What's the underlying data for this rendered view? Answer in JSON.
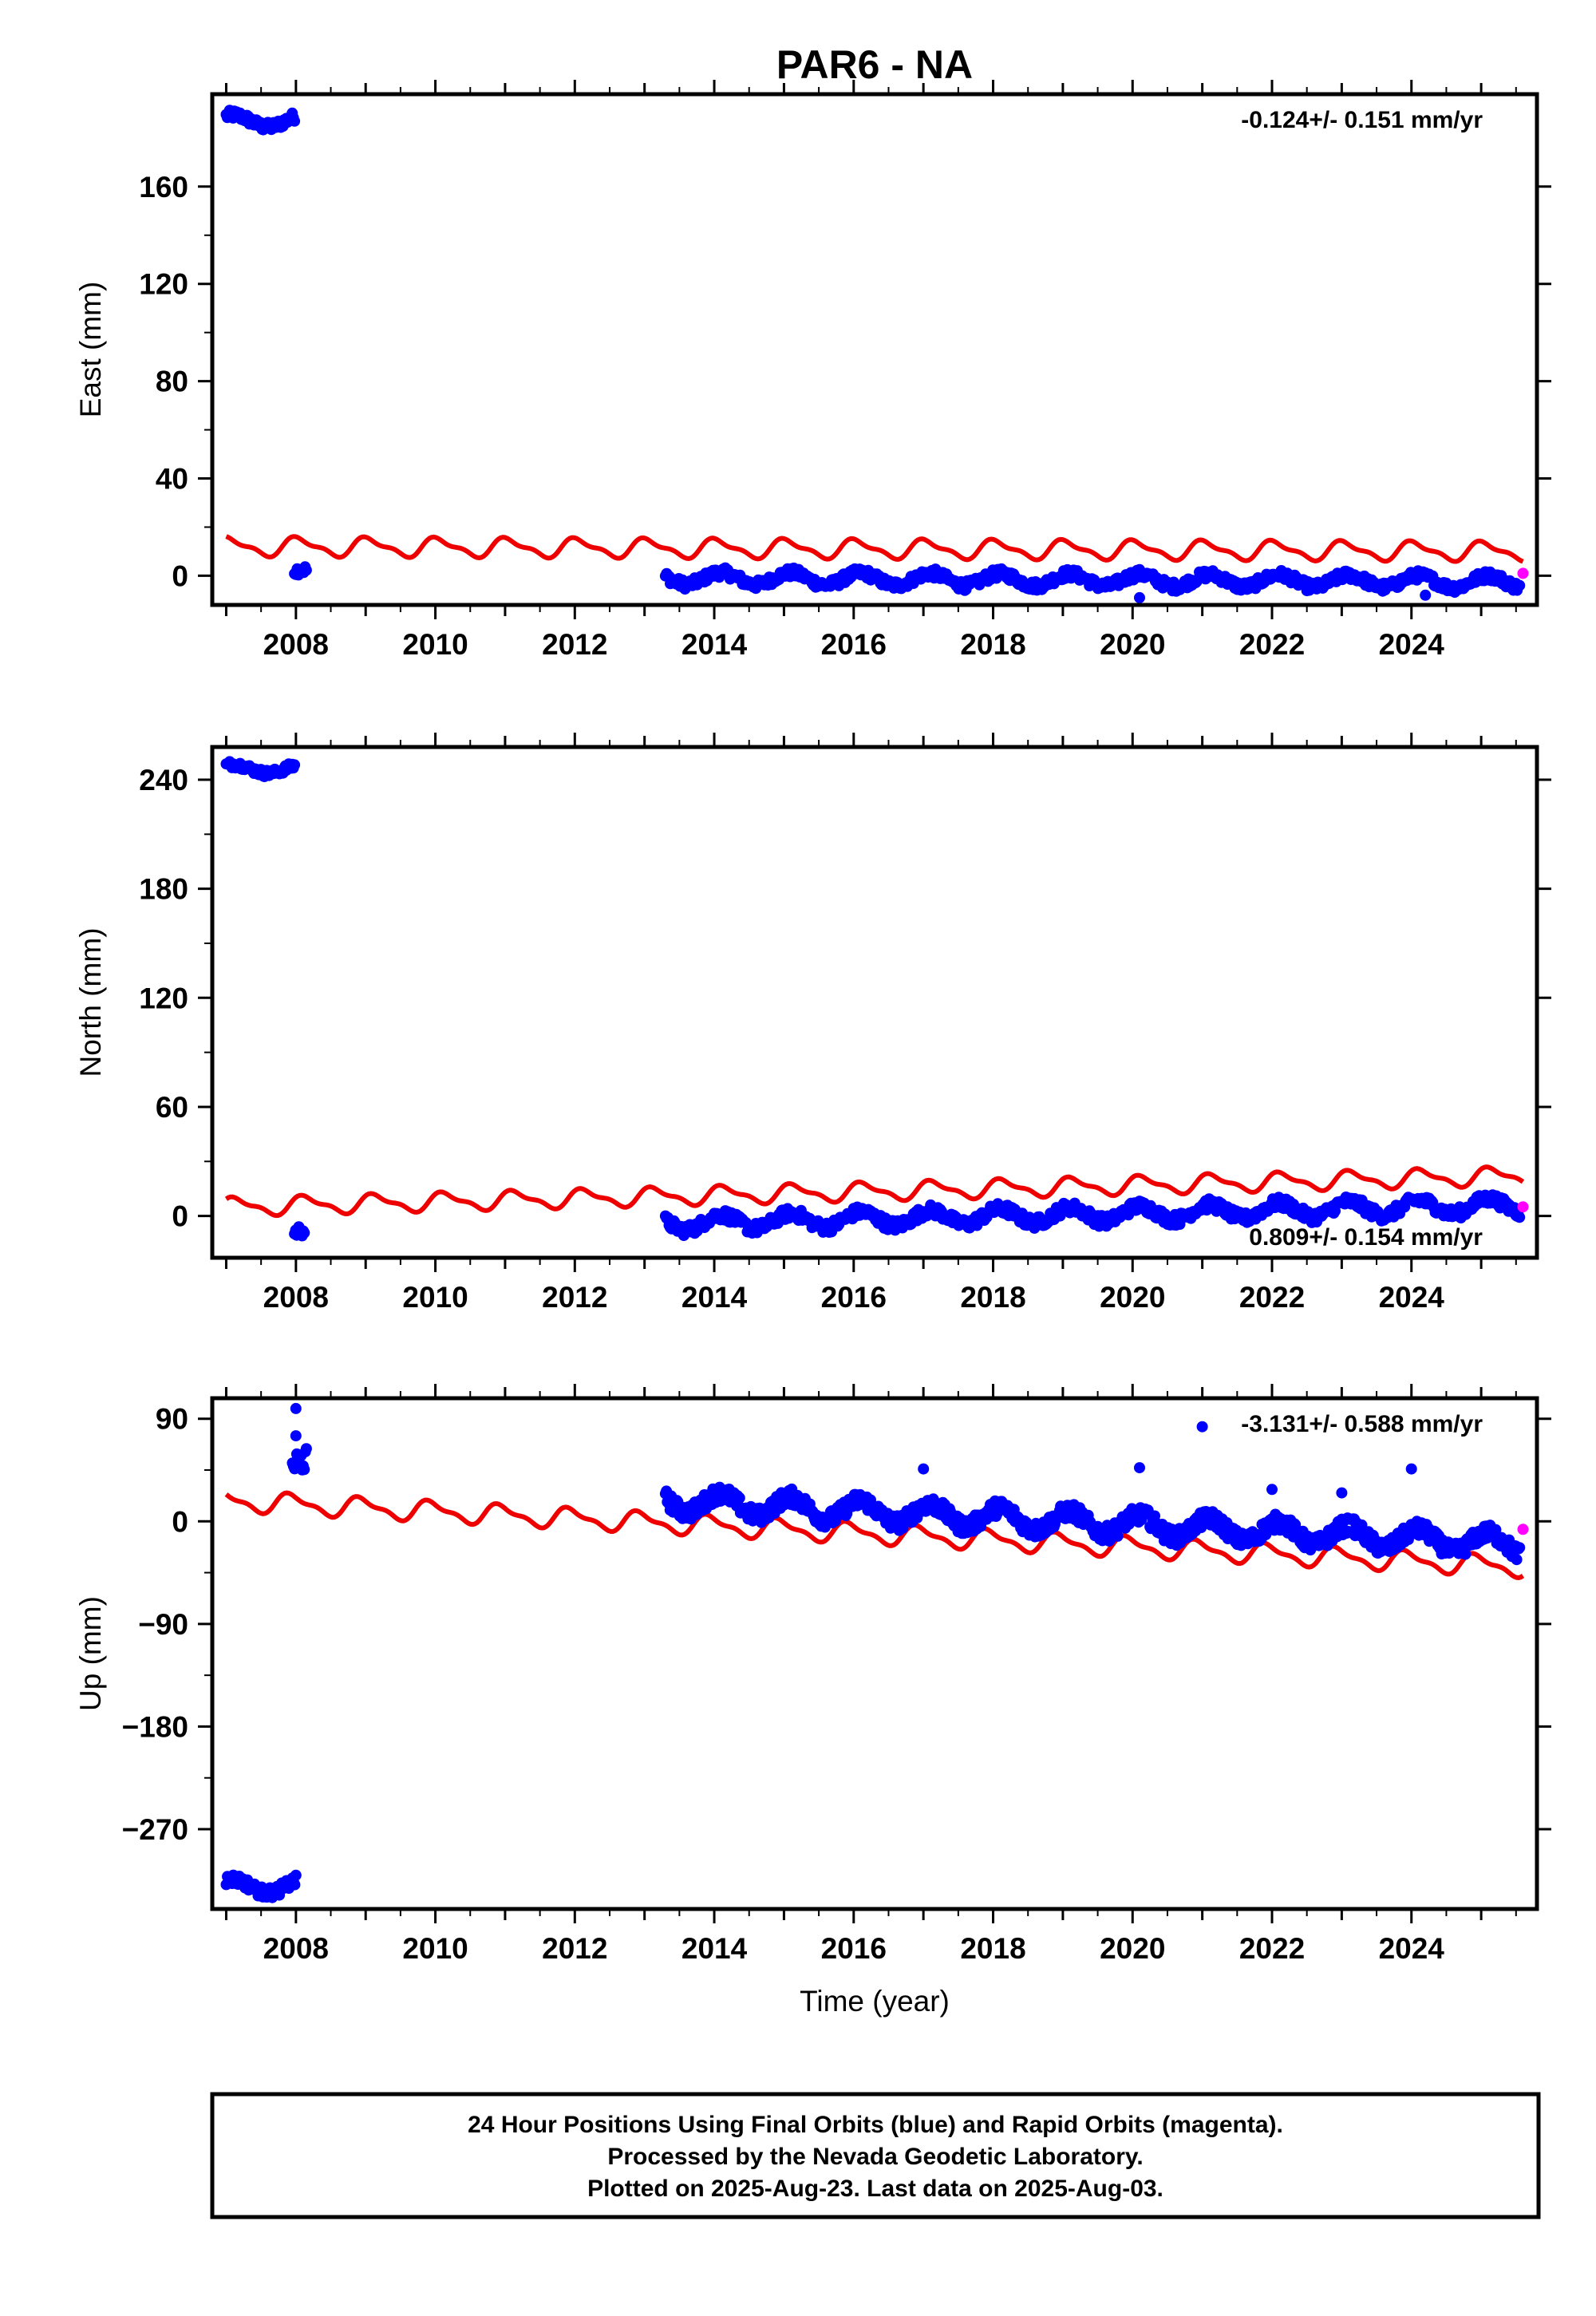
{
  "title": "PAR6 - NA",
  "colors": {
    "final": "#0000ff",
    "rapid": "#ff00ff",
    "model": "#ee0000",
    "frame": "#000000"
  },
  "chart_data": [
    {
      "type": "scatter",
      "component": "East",
      "ylabel": "East (mm)",
      "xlabel": "",
      "xlim": [
        2006.8,
        2025.8
      ],
      "ylim": [
        -12,
        198
      ],
      "yticks": [
        0,
        40,
        80,
        120,
        160
      ],
      "ytick_labels": [
        "0",
        "40",
        "80",
        "120",
        "160"
      ],
      "xticks": [
        2008,
        2010,
        2012,
        2014,
        2016,
        2018,
        2020,
        2022,
        2024
      ],
      "xtick_labels": [
        "2008",
        "2010",
        "2012",
        "2014",
        "2016",
        "2018",
        "2020",
        "2022",
        "2024"
      ],
      "rate": "-0.124+/- 0.151 mm/yr",
      "rate_position": "top-right",
      "model": {
        "t0": 2007.0,
        "t1": 2025.6,
        "start": 12,
        "end": 10,
        "amp": 3.5,
        "phase": 0.2
      },
      "segments": [
        {
          "t0": 2007.0,
          "t1": 2007.98,
          "base": 187,
          "wiggle": 2.5,
          "n": 60
        },
        {
          "t0": 2007.98,
          "t1": 2008.15,
          "base": 0,
          "wiggle": 2.5,
          "n": 10
        },
        {
          "t0": 2013.3,
          "t1": 2025.55,
          "base": -1,
          "trend": -0.124,
          "wiggle": 2.5,
          "n": 700
        }
      ],
      "outliers": [
        {
          "x": 2020.1,
          "y": -9
        },
        {
          "x": 2024.2,
          "y": -8
        }
      ],
      "rapid": {
        "x": 2025.6,
        "y": 1
      }
    },
    {
      "type": "scatter",
      "component": "North",
      "ylabel": "North (mm)",
      "xlabel": "",
      "xlim": [
        2006.8,
        2025.8
      ],
      "ylim": [
        -23,
        258
      ],
      "yticks": [
        0,
        60,
        120,
        180,
        240
      ],
      "ytick_labels": [
        "0",
        "60",
        "120",
        "180",
        "240"
      ],
      "xticks": [
        2008,
        2010,
        2012,
        2014,
        2016,
        2018,
        2020,
        2022,
        2024
      ],
      "xtick_labels": [
        "2008",
        "2010",
        "2012",
        "2014",
        "2016",
        "2018",
        "2020",
        "2022",
        "2024"
      ],
      "rate": "0.809+/- 0.154 mm/yr",
      "rate_position": "bottom-right",
      "model": {
        "t0": 2007.0,
        "t1": 2025.6,
        "start": 5,
        "end": 22,
        "amp": 4.5,
        "phase": 0.1
      },
      "segments": [
        {
          "t0": 2007.0,
          "t1": 2007.98,
          "base": 246,
          "wiggle": 2.5,
          "n": 60
        },
        {
          "t0": 2007.98,
          "t1": 2008.12,
          "base": -12,
          "wiggle": 4,
          "n": 10
        },
        {
          "t0": 2013.3,
          "t1": 2025.55,
          "base": -4,
          "trend": 0.809,
          "wiggle": 4,
          "n": 700
        }
      ],
      "outliers": [],
      "rapid": {
        "x": 2025.6,
        "y": 5
      }
    },
    {
      "type": "scatter",
      "component": "Up",
      "ylabel": "Up (mm)",
      "xlabel": "Time (year)",
      "xlim": [
        2006.8,
        2025.8
      ],
      "ylim": [
        -340,
        108
      ],
      "yticks": [
        -270,
        -180,
        -90,
        0,
        90
      ],
      "ytick_labels": [
        "−270",
        "−180",
        "−90",
        "0",
        "90"
      ],
      "xticks": [
        2008,
        2010,
        2012,
        2014,
        2016,
        2018,
        2020,
        2022,
        2024
      ],
      "xtick_labels": [
        "2008",
        "2010",
        "2012",
        "2014",
        "2016",
        "2018",
        "2020",
        "2022",
        "2024"
      ],
      "rate": "-3.131+/- 0.588 mm/yr",
      "rate_position": "top-right",
      "model": {
        "t0": 2007.0,
        "t1": 2025.6,
        "start": 18,
        "end": -40,
        "amp": 8,
        "phase": 0.3
      },
      "segments": [
        {
          "t0": 2007.0,
          "t1": 2008.0,
          "base": -320,
          "wiggle": 6,
          "n": 60
        },
        {
          "t0": 2007.95,
          "t1": 2008.15,
          "base": 40,
          "wiggle": 14,
          "n": 14
        },
        {
          "t0": 2013.3,
          "t1": 2025.55,
          "base": 18,
          "trend": -3.131,
          "wiggle": 9,
          "n": 900
        }
      ],
      "outliers": [
        {
          "x": 2008.0,
          "y": 99
        },
        {
          "x": 2008.0,
          "y": 75
        },
        {
          "x": 2017.0,
          "y": 46
        },
        {
          "x": 2020.1,
          "y": 47
        },
        {
          "x": 2021.0,
          "y": 83
        },
        {
          "x": 2024.0,
          "y": 46
        },
        {
          "x": 2022.0,
          "y": 28
        },
        {
          "x": 2023.0,
          "y": 25
        }
      ],
      "rapid": {
        "x": 2025.6,
        "y": -7
      }
    }
  ],
  "footer": {
    "lines": [
      "24 Hour Positions Using Final Orbits (blue) and Rapid Orbits (magenta).",
      "Processed by the Nevada Geodetic Laboratory.",
      "Plotted on 2025-Aug-23. Last data on 2025-Aug-03."
    ]
  }
}
